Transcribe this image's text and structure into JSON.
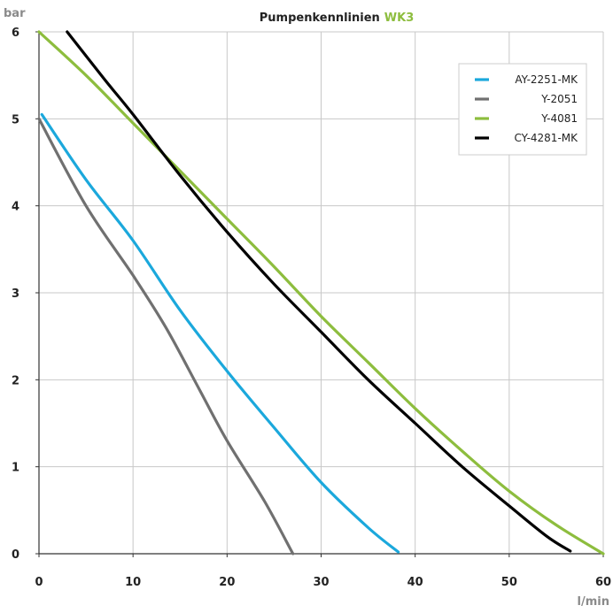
{
  "chart_data": {
    "type": "line",
    "title": "Pumpenkennlinien",
    "title_highlight": "WK3",
    "xlabel": "l/min",
    "ylabel": "bar",
    "xlim": [
      0,
      60
    ],
    "ylim": [
      0,
      6
    ],
    "xticks": [
      "0",
      "10",
      "20",
      "30",
      "40",
      "50",
      "60"
    ],
    "yticks": [
      "0",
      "1",
      "2",
      "3",
      "4",
      "5",
      "6"
    ],
    "grid": true,
    "legend_position": "top-right",
    "colors": {
      "title": "#222222",
      "title_highlight": "#8dbd3e",
      "grid": "#c8c8c8",
      "axis": "#333333"
    },
    "series": [
      {
        "name": "AY-2251-MK",
        "color": "#1ba8dc",
        "points": [
          [
            0.3,
            5.05
          ],
          [
            5,
            4.3
          ],
          [
            10,
            3.6
          ],
          [
            15,
            2.8
          ],
          [
            20,
            2.1
          ],
          [
            25,
            1.45
          ],
          [
            30,
            0.82
          ],
          [
            35,
            0.3
          ],
          [
            38.2,
            0.02
          ]
        ]
      },
      {
        "name": "Y-2051",
        "color": "#707070",
        "points": [
          [
            0,
            5.0
          ],
          [
            5,
            4.0
          ],
          [
            10,
            3.2
          ],
          [
            13.5,
            2.6
          ],
          [
            17,
            1.9
          ],
          [
            20,
            1.3
          ],
          [
            24,
            0.6
          ],
          [
            27,
            0.0
          ]
        ]
      },
      {
        "name": "Y-4081",
        "color": "#8dbd3e",
        "points": [
          [
            0,
            6.0
          ],
          [
            5,
            5.5
          ],
          [
            10,
            4.95
          ],
          [
            15,
            4.4
          ],
          [
            20,
            3.85
          ],
          [
            25,
            3.3
          ],
          [
            30,
            2.73
          ],
          [
            35,
            2.2
          ],
          [
            40,
            1.67
          ],
          [
            45,
            1.18
          ],
          [
            50,
            0.72
          ],
          [
            55,
            0.33
          ],
          [
            60,
            0.0
          ]
        ]
      },
      {
        "name": "CY-4281-MK",
        "color": "#000000",
        "points": [
          [
            3,
            6.0
          ],
          [
            7,
            5.45
          ],
          [
            10,
            5.05
          ],
          [
            15,
            4.35
          ],
          [
            20,
            3.7
          ],
          [
            25,
            3.1
          ],
          [
            30,
            2.55
          ],
          [
            35,
            2.0
          ],
          [
            40,
            1.5
          ],
          [
            45,
            1.0
          ],
          [
            50,
            0.55
          ],
          [
            54,
            0.2
          ],
          [
            56.5,
            0.03
          ]
        ]
      }
    ]
  }
}
